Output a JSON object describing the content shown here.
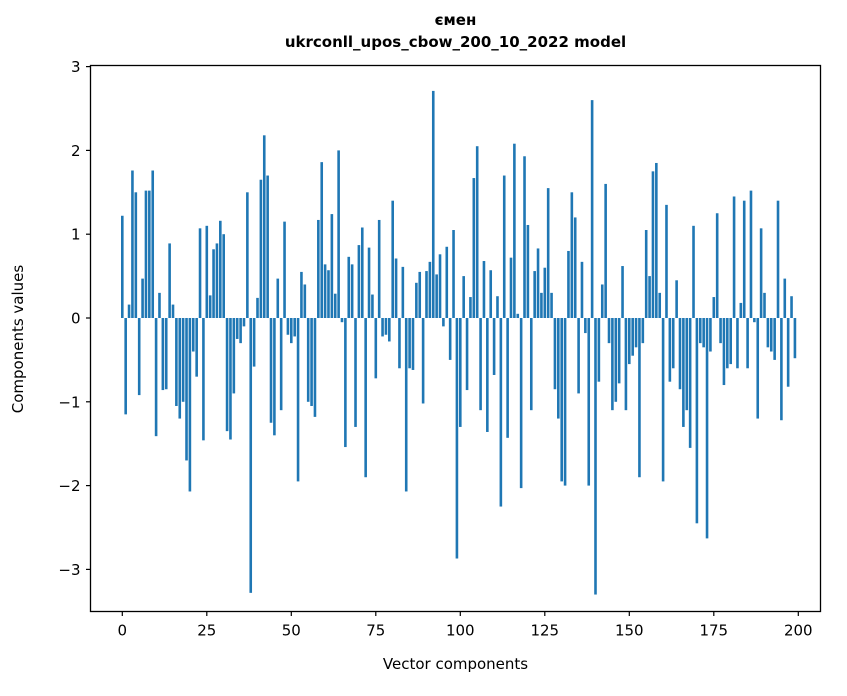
{
  "figure": {
    "title": "ємен",
    "subtitle": "ukrconll_upos_cbow_200_10_2022 model",
    "background_color": "#ffffff",
    "frame_color": "#000000"
  },
  "chart_data": {
    "type": "bar",
    "title": "ємен",
    "subtitle": "ukrconll_upos_cbow_200_10_2022 model",
    "xlabel": "Vector components",
    "ylabel": "Components values",
    "bar_color": "#1f77b4",
    "grid": false,
    "legend": "none",
    "xlim": [
      -9.4,
      206.6
    ],
    "ylim": [
      -3.51,
      3.01
    ],
    "xticks": [
      0,
      25,
      50,
      75,
      100,
      125,
      150,
      175,
      200
    ],
    "yticks": [
      3,
      2,
      1,
      0,
      -1,
      -2,
      -3
    ],
    "ytick_labels": [
      "3",
      "2",
      "1",
      "0",
      "−1",
      "−2",
      "−3"
    ],
    "x_start": 0,
    "n_components": 200,
    "values": [
      1.22,
      -1.15,
      0.16,
      1.76,
      1.5,
      -0.92,
      0.47,
      1.52,
      1.52,
      1.76,
      -1.41,
      0.3,
      -0.86,
      -0.85,
      0.89,
      0.16,
      -1.05,
      -1.2,
      -1.0,
      -1.7,
      -2.07,
      -0.4,
      -0.7,
      1.07,
      -1.46,
      1.1,
      0.27,
      0.82,
      0.89,
      1.16,
      1.0,
      -1.35,
      -1.45,
      -0.9,
      -0.25,
      -0.3,
      -0.1,
      1.5,
      -3.28,
      -0.58,
      0.24,
      1.65,
      2.18,
      1.7,
      -1.25,
      -1.4,
      0.47,
      -1.1,
      1.15,
      -0.2,
      -0.3,
      -0.22,
      -1.95,
      0.55,
      0.4,
      -1.0,
      -1.05,
      -1.18,
      1.17,
      1.86,
      0.64,
      0.57,
      1.24,
      0.29,
      2.0,
      -0.05,
      -1.54,
      0.73,
      0.64,
      -1.3,
      0.87,
      1.08,
      -1.9,
      0.84,
      0.28,
      -0.72,
      1.17,
      -0.22,
      -0.2,
      -0.28,
      1.4,
      0.71,
      -0.6,
      0.61,
      -2.07,
      -0.6,
      -0.62,
      0.42,
      0.55,
      -1.02,
      0.56,
      0.67,
      2.71,
      0.52,
      0.76,
      -0.1,
      0.85,
      -0.5,
      1.05,
      -2.87,
      -1.3,
      0.5,
      -0.86,
      0.25,
      1.67,
      2.05,
      -1.1,
      0.68,
      -1.36,
      0.57,
      -0.68,
      0.26,
      -2.25,
      1.7,
      -1.43,
      0.72,
      2.08,
      0.05,
      -2.03,
      1.93,
      1.11,
      -1.1,
      0.56,
      0.83,
      0.3,
      0.6,
      1.55,
      0.3,
      -0.85,
      -1.2,
      -1.95,
      -2.0,
      0.8,
      1.5,
      1.2,
      -0.9,
      0.67,
      -0.18,
      -2.0,
      2.6,
      -3.3,
      -0.76,
      0.4,
      1.6,
      -0.3,
      -1.1,
      -1.0,
      -0.78,
      0.62,
      -1.1,
      -0.55,
      -0.45,
      -0.35,
      -1.9,
      -0.3,
      1.05,
      0.5,
      1.75,
      1.85,
      0.3,
      -1.95,
      1.35,
      -0.76,
      -0.6,
      0.45,
      -0.85,
      -1.3,
      -1.1,
      -1.55,
      1.1,
      -2.45,
      -0.3,
      -0.35,
      -2.63,
      -0.4,
      0.25,
      1.25,
      -0.3,
      -0.8,
      -0.6,
      -0.55,
      1.45,
      -0.6,
      0.18,
      1.4,
      -0.6,
      1.52,
      -0.05,
      -1.2,
      1.07,
      0.3,
      -0.35,
      -0.4,
      -0.5,
      1.4,
      -1.22,
      0.47,
      -0.82,
      0.26,
      -0.48
    ]
  }
}
